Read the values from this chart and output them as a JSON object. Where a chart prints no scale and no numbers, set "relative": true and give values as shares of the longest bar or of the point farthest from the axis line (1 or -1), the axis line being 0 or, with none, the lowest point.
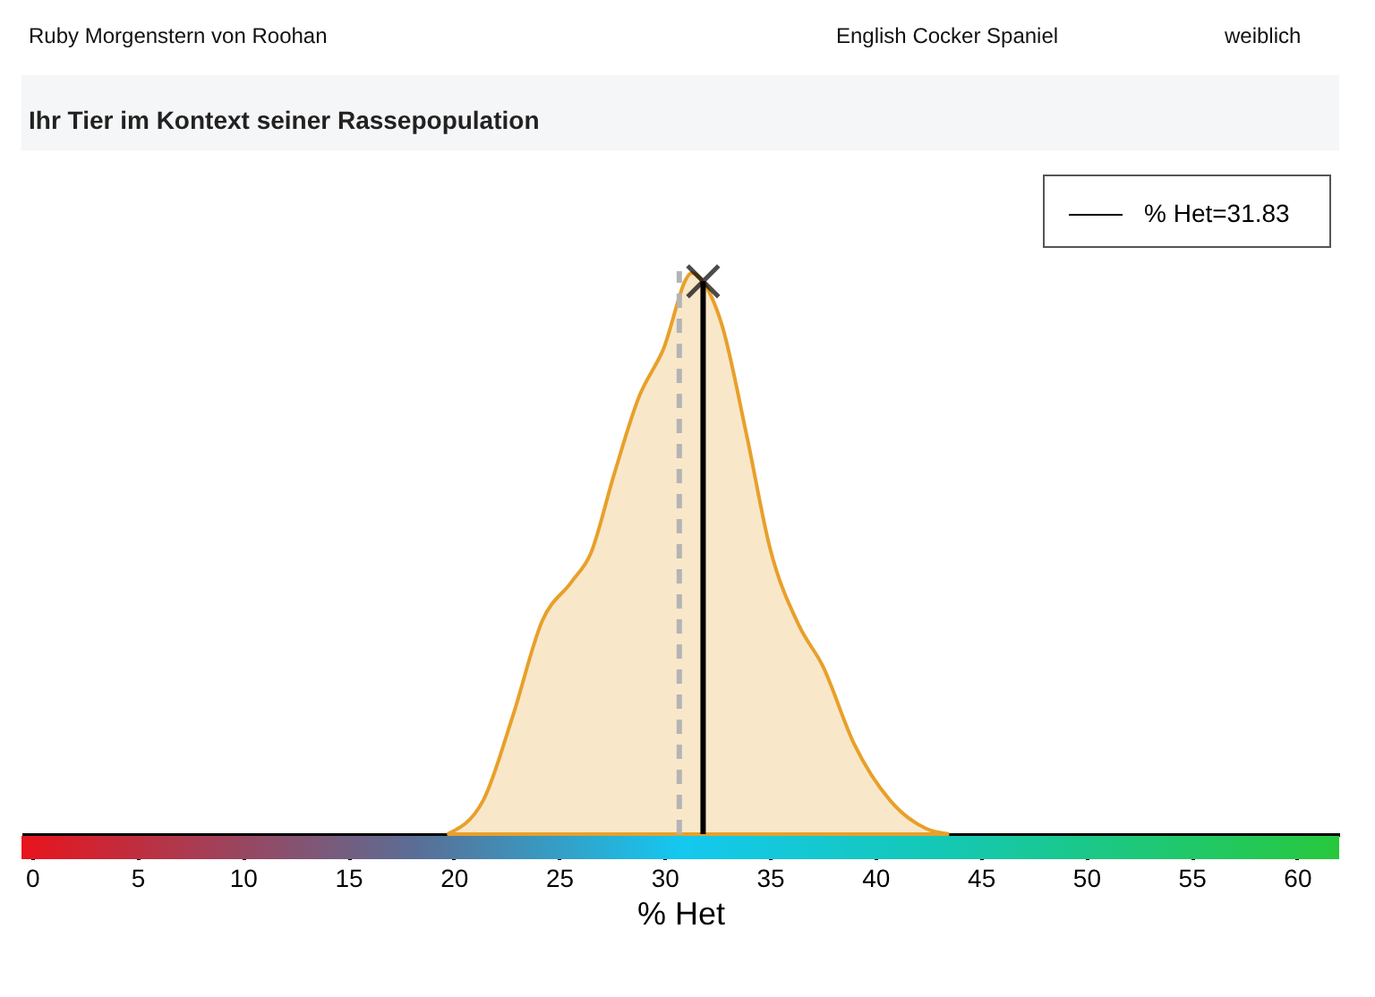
{
  "chart_data": {
    "type": "area",
    "title": "Ihr Tier im Kontext seiner Rassepopulation",
    "annotations": [
      "Ruby Morgenstern von Roohan",
      "English Cocker Spaniel",
      "weiblich"
    ],
    "xlabel": "% Het",
    "relative": true,
    "xlim": [
      -0.5,
      62
    ],
    "xticks": [
      0,
      5,
      10,
      15,
      20,
      25,
      30,
      35,
      40,
      45,
      50,
      55,
      60
    ],
    "series": [
      {
        "color": "#e8a02a",
        "x": [
          19.7,
          21.4,
          22.8,
          24.2,
          25.6,
          26.5,
          27.6,
          28.8,
          29.9,
          31.3,
          31.8,
          32.7,
          33.9,
          35.0,
          36.4,
          37.5,
          39.0,
          40.7,
          42.4,
          43.5
        ],
        "values": [
          0,
          0.06,
          0.21,
          0.38,
          0.45,
          0.5,
          0.64,
          0.78,
          0.86,
          1.0,
          0.985,
          0.91,
          0.71,
          0.51,
          0.37,
          0.3,
          0.16,
          0.06,
          0.01,
          0
        ]
      },
      {
        "type": "line",
        "name": "% Het=31.83",
        "color": "#000000",
        "marker": "cross",
        "x": [
          31.83,
          31.83
        ],
        "values": [
          0,
          0.985
        ]
      }
    ],
    "ref_lines": [
      {
        "axis": "x",
        "value": 30.7,
        "color": "#b4b4b4",
        "line_style": "dashed"
      }
    ],
    "legend": "top right",
    "grid": false
  }
}
